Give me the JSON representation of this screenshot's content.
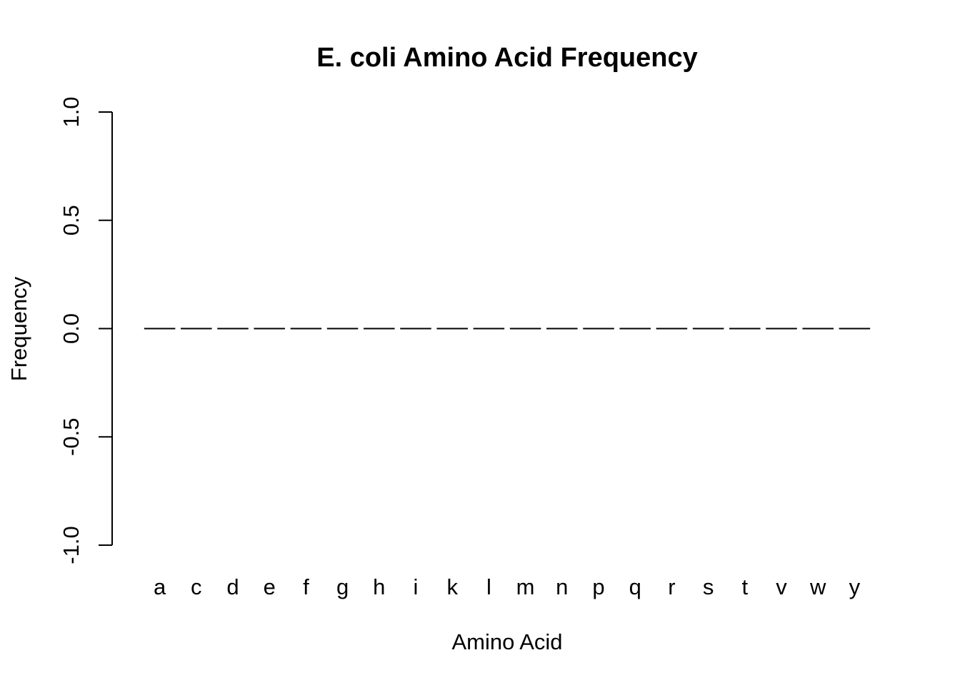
{
  "chart_data": {
    "type": "bar",
    "title": "E. coli Amino Acid Frequency",
    "xlabel": "Amino Acid",
    "ylabel": "Frequency",
    "categories": [
      "a",
      "c",
      "d",
      "e",
      "f",
      "g",
      "h",
      "i",
      "k",
      "l",
      "m",
      "n",
      "p",
      "q",
      "r",
      "s",
      "t",
      "v",
      "w",
      "y"
    ],
    "values": [
      0,
      0,
      0,
      0,
      0,
      0,
      0,
      0,
      0,
      0,
      0,
      0,
      0,
      0,
      0,
      0,
      0,
      0,
      0,
      0
    ],
    "ylim": [
      -1.0,
      1.0
    ],
    "yticks": [
      -1.0,
      -0.5,
      0.0,
      0.5,
      1.0
    ],
    "ytick_labels": [
      "-1.0",
      "-0.5",
      "0.0",
      "0.5",
      "1.0"
    ],
    "grid": false,
    "legend": false,
    "colors": {
      "axis": "#000000",
      "bar_border": "#000000",
      "background": "#ffffff"
    }
  }
}
